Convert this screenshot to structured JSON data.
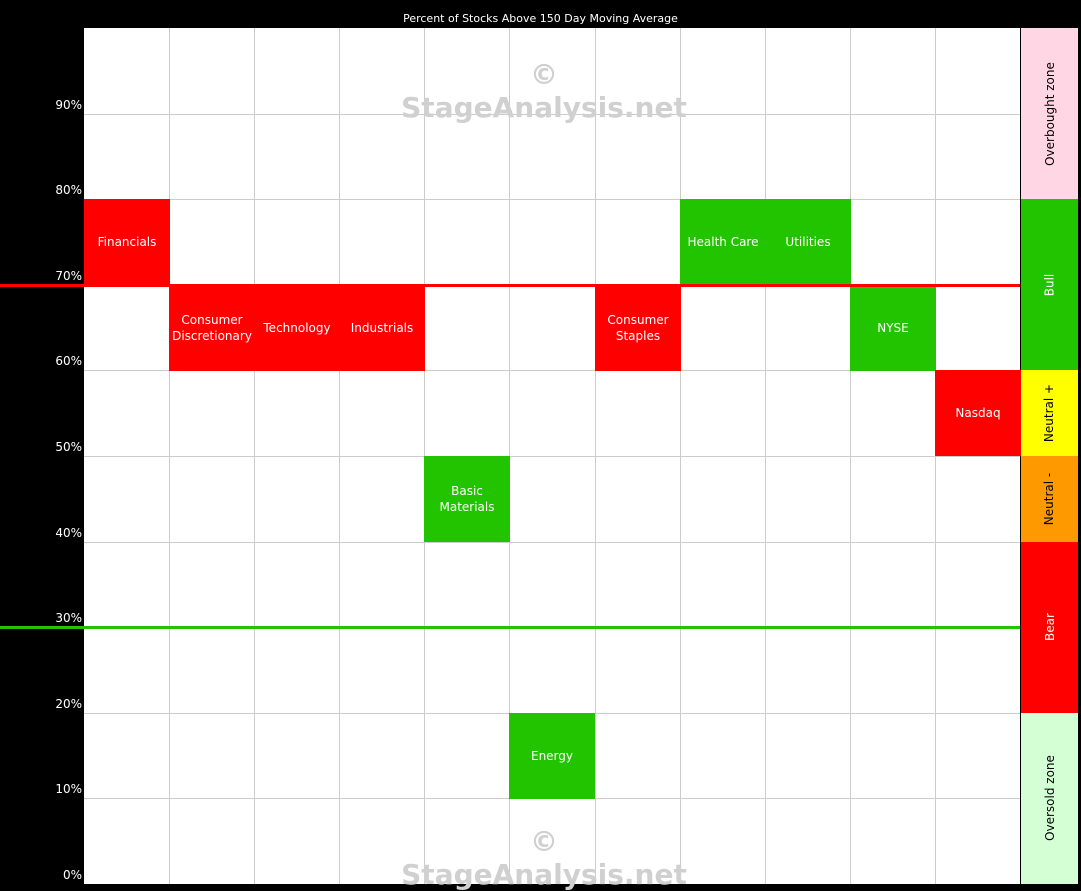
{
  "chart_data": {
    "type": "heatmap",
    "title": "Percent of Stocks Above 150 Day Moving Average",
    "ylim": [
      0,
      100
    ],
    "yticks": [
      "0%",
      "10%",
      "20%",
      "30%",
      "40%",
      "50%",
      "60%",
      "70%",
      "80%",
      "90%"
    ],
    "watermark": "© StageAnalysis.net",
    "categories": [
      "Financials",
      "Consumer Discretionary",
      "Technology",
      "Industrials",
      "Basic Materials",
      "Energy",
      "Consumer Staples",
      "Health Care",
      "Utilities",
      "NYSE",
      "Nasdaq"
    ],
    "tiles": [
      {
        "label": "Financials",
        "range": [
          70,
          80
        ],
        "color": "#ff0000"
      },
      {
        "label": "Consumer Discretionary",
        "range": [
          60,
          70
        ],
        "color": "#ff0000"
      },
      {
        "label": "Technology",
        "range": [
          60,
          70
        ],
        "color": "#ff0000"
      },
      {
        "label": "Industrials",
        "range": [
          60,
          70
        ],
        "color": "#ff0000"
      },
      {
        "label": "Basic Materials",
        "range": [
          40,
          50
        ],
        "color": "#22c400"
      },
      {
        "label": "Energy",
        "range": [
          10,
          20
        ],
        "color": "#22c400"
      },
      {
        "label": "Consumer Staples",
        "range": [
          60,
          70
        ],
        "color": "#ff0000"
      },
      {
        "label": "Health Care",
        "range": [
          70,
          80
        ],
        "color": "#22c400"
      },
      {
        "label": "Utilities",
        "range": [
          70,
          80
        ],
        "color": "#22c400"
      },
      {
        "label": "NYSE",
        "range": [
          60,
          70
        ],
        "color": "#22c400"
      },
      {
        "label": "Nasdaq",
        "range": [
          50,
          60
        ],
        "color": "#ff0000"
      }
    ],
    "reference_lines": [
      {
        "y": 70,
        "color": "#ff0000"
      },
      {
        "y": 30,
        "color": "#22c400"
      }
    ],
    "zones": [
      {
        "label": "Overbought zone",
        "range": [
          80,
          100
        ],
        "color": "#ffd6e4",
        "text_color": "#000"
      },
      {
        "label": "Bull",
        "range": [
          60,
          80
        ],
        "color": "#22c400",
        "text_color": "#fff"
      },
      {
        "label": "Neutral +",
        "range": [
          50,
          60
        ],
        "color": "#ffff00",
        "text_color": "#000"
      },
      {
        "label": "Neutral -",
        "range": [
          40,
          50
        ],
        "color": "#ff9900",
        "text_color": "#000"
      },
      {
        "label": "Bear",
        "range": [
          20,
          40
        ],
        "color": "#ff0000",
        "text_color": "#fff"
      },
      {
        "label": "Oversold zone",
        "range": [
          0,
          20
        ],
        "color": "#d4ffd4",
        "text_color": "#000"
      }
    ]
  }
}
